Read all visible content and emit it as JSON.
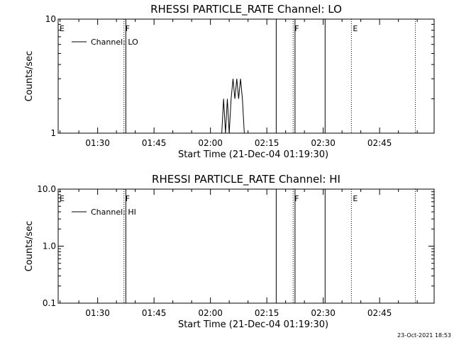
{
  "chart_data": [
    {
      "type": "line",
      "title": "RHESSI PARTICLE_RATE Channel: LO",
      "xlabel": "Start Time (21-Dec-04 01:19:30)",
      "ylabel": "Counts/sec",
      "yscale": "log",
      "ylim": [
        1,
        10
      ],
      "xlim": [
        "01:19:30",
        "02:59:30"
      ],
      "y_ticks": [
        "1",
        "10"
      ],
      "x_ticks": [
        "01:30",
        "01:45",
        "02:00",
        "02:15",
        "02:30",
        "02:45"
      ],
      "legend": {
        "entry": "Channel: LO",
        "placement": "top-left"
      },
      "series": [
        {
          "name": "Channel: LO",
          "x": [
            "02:03:00",
            "02:03:30",
            "02:04:00",
            "02:04:30",
            "02:05:00",
            "02:05:30",
            "02:06:00",
            "02:06:30",
            "02:07:00",
            "02:07:30",
            "02:08:00",
            "02:08:30",
            "02:09:00"
          ],
          "y": [
            1,
            2,
            1,
            2,
            1,
            2,
            3,
            2,
            3,
            2,
            3,
            2,
            1
          ]
        }
      ],
      "flags": [
        {
          "time": "01:19:30",
          "label": "E",
          "style": "dotted"
        },
        {
          "time": "01:37:00",
          "label": "F",
          "style": "dotted"
        },
        {
          "time": "02:22:00",
          "label": "F",
          "style": "dotted"
        },
        {
          "time": "02:37:30",
          "label": "E",
          "style": "dotted"
        },
        {
          "time": "02:54:30",
          "label": "",
          "style": "dotted"
        }
      ],
      "solid_lines": [
        "01:37:30",
        "02:17:30",
        "02:22:30",
        "02:30:30"
      ]
    },
    {
      "type": "line",
      "title": "RHESSI PARTICLE_RATE Channel: HI",
      "xlabel": "Start Time (21-Dec-04 01:19:30)",
      "ylabel": "Counts/sec",
      "yscale": "log",
      "ylim": [
        0.1,
        10
      ],
      "xlim": [
        "01:19:30",
        "02:59:30"
      ],
      "y_ticks": [
        "0.1",
        "1.0",
        "10.0"
      ],
      "x_ticks": [
        "01:30",
        "01:45",
        "02:00",
        "02:15",
        "02:30",
        "02:45"
      ],
      "legend": {
        "entry": "Channel: HI",
        "placement": "top-left"
      },
      "series": [
        {
          "name": "Channel: HI",
          "x": [],
          "y": []
        }
      ],
      "flags": [
        {
          "time": "01:19:30",
          "label": "E",
          "style": "dotted"
        },
        {
          "time": "01:37:00",
          "label": "F",
          "style": "dotted"
        },
        {
          "time": "02:22:00",
          "label": "F",
          "style": "dotted"
        },
        {
          "time": "02:37:30",
          "label": "E",
          "style": "dotted"
        },
        {
          "time": "02:54:30",
          "label": "",
          "style": "dotted"
        }
      ],
      "solid_lines": [
        "01:37:30",
        "02:17:30",
        "02:22:30",
        "02:30:30"
      ]
    }
  ],
  "footer": {
    "timestamp": "23-Oct-2021 18:53"
  }
}
